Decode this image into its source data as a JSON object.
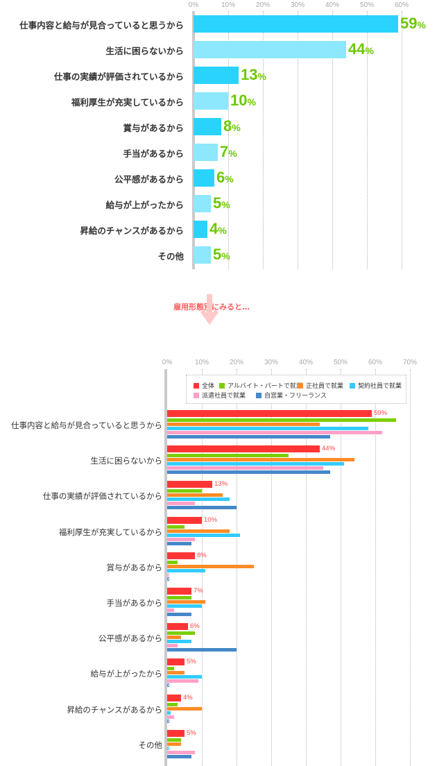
{
  "chart_data": [
    {
      "type": "bar",
      "orientation": "horizontal",
      "title": "",
      "xlabel": "",
      "ylabel": "",
      "xlim": [
        0,
        60
      ],
      "tick_labels": [
        "0%",
        "10%",
        "20%",
        "30%",
        "40%",
        "50%",
        "60%"
      ],
      "grid": true,
      "categories": [
        "仕事内容と給与が見合っていると思うから",
        "生活に困らないから",
        "仕事の実績が評価されているから",
        "福利厚生が充実しているから",
        "賞与があるから",
        "手当があるから",
        "公平感があるから",
        "給与が上がったから",
        "昇給のチャンスがあるから",
        "その他"
      ],
      "values": [
        59,
        44,
        13,
        10,
        8,
        7,
        6,
        5,
        4,
        5
      ],
      "value_labels": [
        "59",
        "44",
        "13",
        "10",
        "8",
        "7",
        "6",
        "5",
        "4",
        "5"
      ],
      "value_suffix": "%",
      "colors": [
        "#2ad3fc",
        "#8de7fd"
      ]
    },
    {
      "type": "bar",
      "orientation": "horizontal",
      "title": "雇用形態別にみると…",
      "xlabel": "",
      "ylabel": "",
      "xlim": [
        0,
        70
      ],
      "tick_labels": [
        "0%",
        "10%",
        "20%",
        "30%",
        "40%",
        "50%",
        "60%",
        "70%"
      ],
      "grid": true,
      "legend_position": "top",
      "categories": [
        "仕事内容と給与が見合っていると思うから",
        "生活に困らないから",
        "仕事の実績が評価されているから",
        "福利厚生が充実しているから",
        "賞与があるから",
        "手当があるから",
        "公平感があるから",
        "給与が上がったから",
        "昇給のチャンスがあるから",
        "その他"
      ],
      "series": [
        {
          "name": "全体",
          "color": "#ff3535",
          "values": [
            59,
            44,
            13,
            10,
            8,
            7,
            6,
            5,
            4,
            5
          ],
          "labels": [
            "59%",
            "44%",
            "13%",
            "10%",
            "8%",
            "7%",
            "6%",
            "5%",
            "4%",
            "5%"
          ]
        },
        {
          "name": "アルバイト・パートで就業",
          "color": "#7ccd00",
          "values": [
            66,
            35,
            10,
            5,
            3,
            7,
            8,
            2,
            3,
            4
          ]
        },
        {
          "name": "正社員で就業",
          "color": "#ff8c26",
          "values": [
            44,
            54,
            16,
            18,
            25,
            11,
            4,
            5,
            10,
            4
          ]
        },
        {
          "name": "契約社員で就業",
          "color": "#33ccff",
          "values": [
            58,
            51,
            18,
            21,
            11,
            10,
            7,
            10,
            1,
            0
          ]
        },
        {
          "name": "派遣社員で就業",
          "color": "#ffa0c8",
          "values": [
            62,
            45,
            8,
            8,
            0,
            2,
            3,
            9,
            2,
            8
          ]
        },
        {
          "name": "自営業・フリーランス",
          "color": "#4588c8",
          "values": [
            47,
            47,
            20,
            7,
            0,
            7,
            20,
            0,
            0,
            7
          ]
        }
      ]
    }
  ],
  "top": {
    "ticks": [
      "0%",
      "10%",
      "20%",
      "30%",
      "40%",
      "50%",
      "60%"
    ],
    "rows": [
      {
        "label": "仕事内容と給与が見合っていると思うから",
        "num": "59",
        "pct": "%"
      },
      {
        "label": "生活に困らないから",
        "num": "44",
        "pct": "%"
      },
      {
        "label": "仕事の実績が評価されているから",
        "num": "13",
        "pct": "%"
      },
      {
        "label": "福利厚生が充実しているから",
        "num": "10",
        "pct": "%"
      },
      {
        "label": "賞与があるから",
        "num": "8",
        "pct": "%"
      },
      {
        "label": "手当があるから",
        "num": "7",
        "pct": "%"
      },
      {
        "label": "公平感があるから",
        "num": "6",
        "pct": "%"
      },
      {
        "label": "給与が上がったから",
        "num": "5",
        "pct": "%"
      },
      {
        "label": "昇給のチャンスがあるから",
        "num": "4",
        "pct": "%"
      },
      {
        "label": "その他",
        "num": "5",
        "pct": "%"
      }
    ]
  },
  "divider": {
    "text": "雇用形態別にみると…",
    "arrow_color": "#ffc4c4",
    "text_color": "#ff5e5e"
  },
  "bottom": {
    "ticks": [
      "0%",
      "10%",
      "20%",
      "30%",
      "40%",
      "50%",
      "60%",
      "70%"
    ],
    "legend": [
      "全体",
      "アルバイト・パートで就業",
      "正社員で就業",
      "契約社員で就業",
      "派遣社員で就業",
      "自営業・フリーランス"
    ],
    "rows": [
      {
        "label": "仕事内容と給与が見合っていると思うから",
        "value_label": "59%"
      },
      {
        "label": "生活に困らないから",
        "value_label": "44%"
      },
      {
        "label": "仕事の実績が評価されているから",
        "value_label": "13%"
      },
      {
        "label": "福利厚生が充実しているから",
        "value_label": "10%"
      },
      {
        "label": "賞与があるから",
        "value_label": "8%"
      },
      {
        "label": "手当があるから",
        "value_label": "7%"
      },
      {
        "label": "公平感があるから",
        "value_label": "6%"
      },
      {
        "label": "給与が上がったから",
        "value_label": "5%"
      },
      {
        "label": "昇給のチャンスがあるから",
        "value_label": "4%"
      },
      {
        "label": "その他",
        "value_label": "5%"
      }
    ]
  }
}
